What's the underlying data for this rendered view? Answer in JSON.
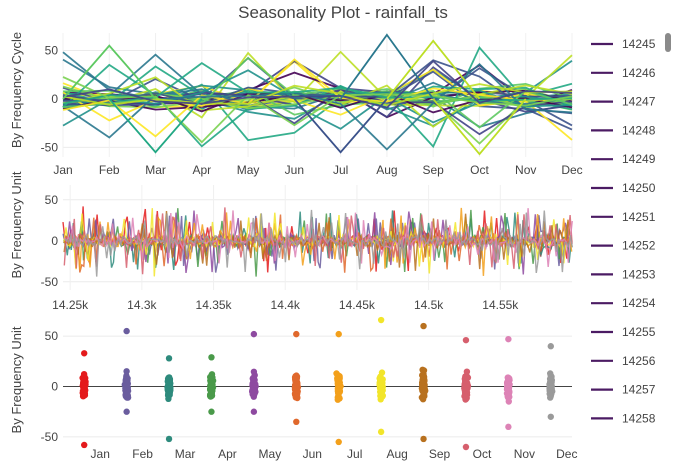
{
  "chart_data": {
    "title": "Seasonality Plot - rainfall_ts",
    "palette": [
      "#440154",
      "#3b528b",
      "#21918c",
      "#5ec962",
      "#fde725",
      "#2a788e",
      "#22a884",
      "#7ad151",
      "#bddf26",
      "#414487"
    ],
    "month_colors": [
      "#e41a1c",
      "#6a5d9e",
      "#2e8b7d",
      "#4a9a4a",
      "#8e4aa0",
      "#e0682c",
      "#f3a01b",
      "#f2e52a",
      "#b8711f",
      "#d65f6d",
      "#dd83b6",
      "#9a9a9a"
    ],
    "panels": [
      {
        "type": "line",
        "ylabel": "By Frequency Cycle",
        "x_ticks": [
          "Jan",
          "Feb",
          "Mar",
          "Apr",
          "May",
          "Jun",
          "Jul",
          "Aug",
          "Sep",
          "Oct",
          "Nov",
          "Dec"
        ],
        "ylim": [
          -60,
          68
        ],
        "y_ticks": [
          -50,
          0,
          50
        ],
        "series_count": 40
      },
      {
        "type": "line",
        "ylabel": "By Frequency Unit",
        "x_ticks": [
          "14.25k",
          "14.3k",
          "14.35k",
          "14.4k",
          "14.45k",
          "14.5k",
          "14.55k"
        ],
        "xlim": [
          14245,
          14600
        ],
        "ylim": [
          -60,
          68
        ],
        "y_ticks": [
          -50,
          0,
          50
        ]
      },
      {
        "type": "scatter",
        "ylabel": "By Frequency Unit",
        "x_ticks": [
          "Jan",
          "Feb",
          "Mar",
          "Apr",
          "May",
          "Jun",
          "Jul",
          "Aug",
          "Sep",
          "Oct",
          "Nov",
          "Dec"
        ],
        "ylim": [
          -60,
          68
        ],
        "y_ticks": [
          -50,
          0,
          50
        ],
        "month_max": [
          33,
          55,
          28,
          29,
          52,
          52,
          52,
          66,
          60,
          46,
          47,
          40
        ],
        "month_min": [
          -58,
          -25,
          -52,
          -25,
          -25,
          -35,
          -55,
          -45,
          -52,
          -60,
          -40,
          -30
        ]
      }
    ],
    "legend": {
      "position": "right",
      "items": [
        "14245",
        "14246",
        "14247",
        "14248",
        "14249",
        "14250",
        "14251",
        "14252",
        "14253",
        "14254",
        "14255",
        "14256",
        "14257",
        "14258"
      ],
      "color": "#4b1b63"
    }
  }
}
